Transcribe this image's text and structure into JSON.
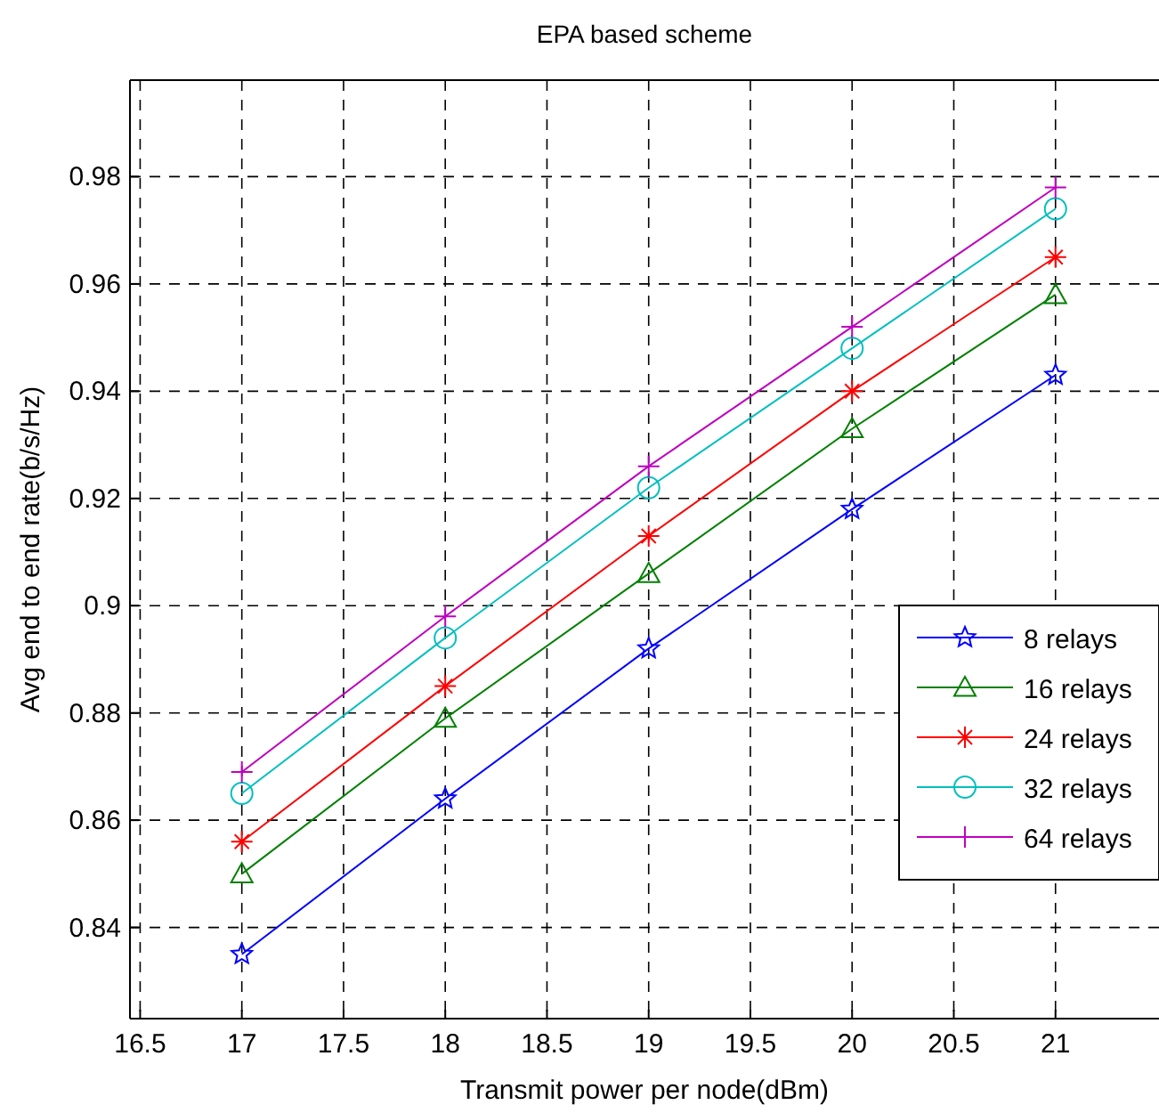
{
  "chart_data": {
    "type": "line",
    "title": "EPA based scheme",
    "xlabel": "Transmit power per node(dBm)",
    "ylabel": "Avg end to end rate(b/s/Hz)",
    "x": [
      17,
      18,
      19,
      20,
      21
    ],
    "xlim": [
      16.45,
      21.5
    ],
    "xticks": [
      16.5,
      17,
      17.5,
      18,
      18.5,
      19,
      19.5,
      20,
      20.5,
      21
    ],
    "ylim": [
      0.823,
      0.998
    ],
    "yticks": [
      {
        "value": 0.84,
        "label": "0.84"
      },
      {
        "value": 0.86,
        "label": "0.86"
      },
      {
        "value": 0.88,
        "label": "0.88"
      },
      {
        "value": 0.9,
        "label": "0.9"
      },
      {
        "value": 0.92,
        "label": "0.92"
      },
      {
        "value": 0.94,
        "label": "0.94"
      },
      {
        "value": 0.96,
        "label": "0.96"
      },
      {
        "value": 0.98,
        "label": "0.98"
      }
    ],
    "grid": true,
    "legend": "right",
    "line_style": "solid",
    "series": [
      {
        "name": "8 relays",
        "color": "#0000ff",
        "marker": "star",
        "values": [
          0.835,
          0.864,
          0.892,
          0.918,
          0.943
        ]
      },
      {
        "name": "16 relays",
        "color": "#008000",
        "marker": "triangle",
        "values": [
          0.85,
          0.879,
          0.906,
          0.933,
          0.958
        ]
      },
      {
        "name": "24 relays",
        "color": "#ff0000",
        "marker": "cross",
        "values": [
          0.856,
          0.885,
          0.913,
          0.94,
          0.965
        ]
      },
      {
        "name": "32 relays",
        "color": "#00bfbf",
        "marker": "circle",
        "values": [
          0.865,
          0.894,
          0.922,
          0.948,
          0.974
        ]
      },
      {
        "name": "64 relays",
        "color": "#bf00bf",
        "marker": "plus",
        "values": [
          0.869,
          0.898,
          0.926,
          0.952,
          0.978
        ]
      }
    ]
  }
}
